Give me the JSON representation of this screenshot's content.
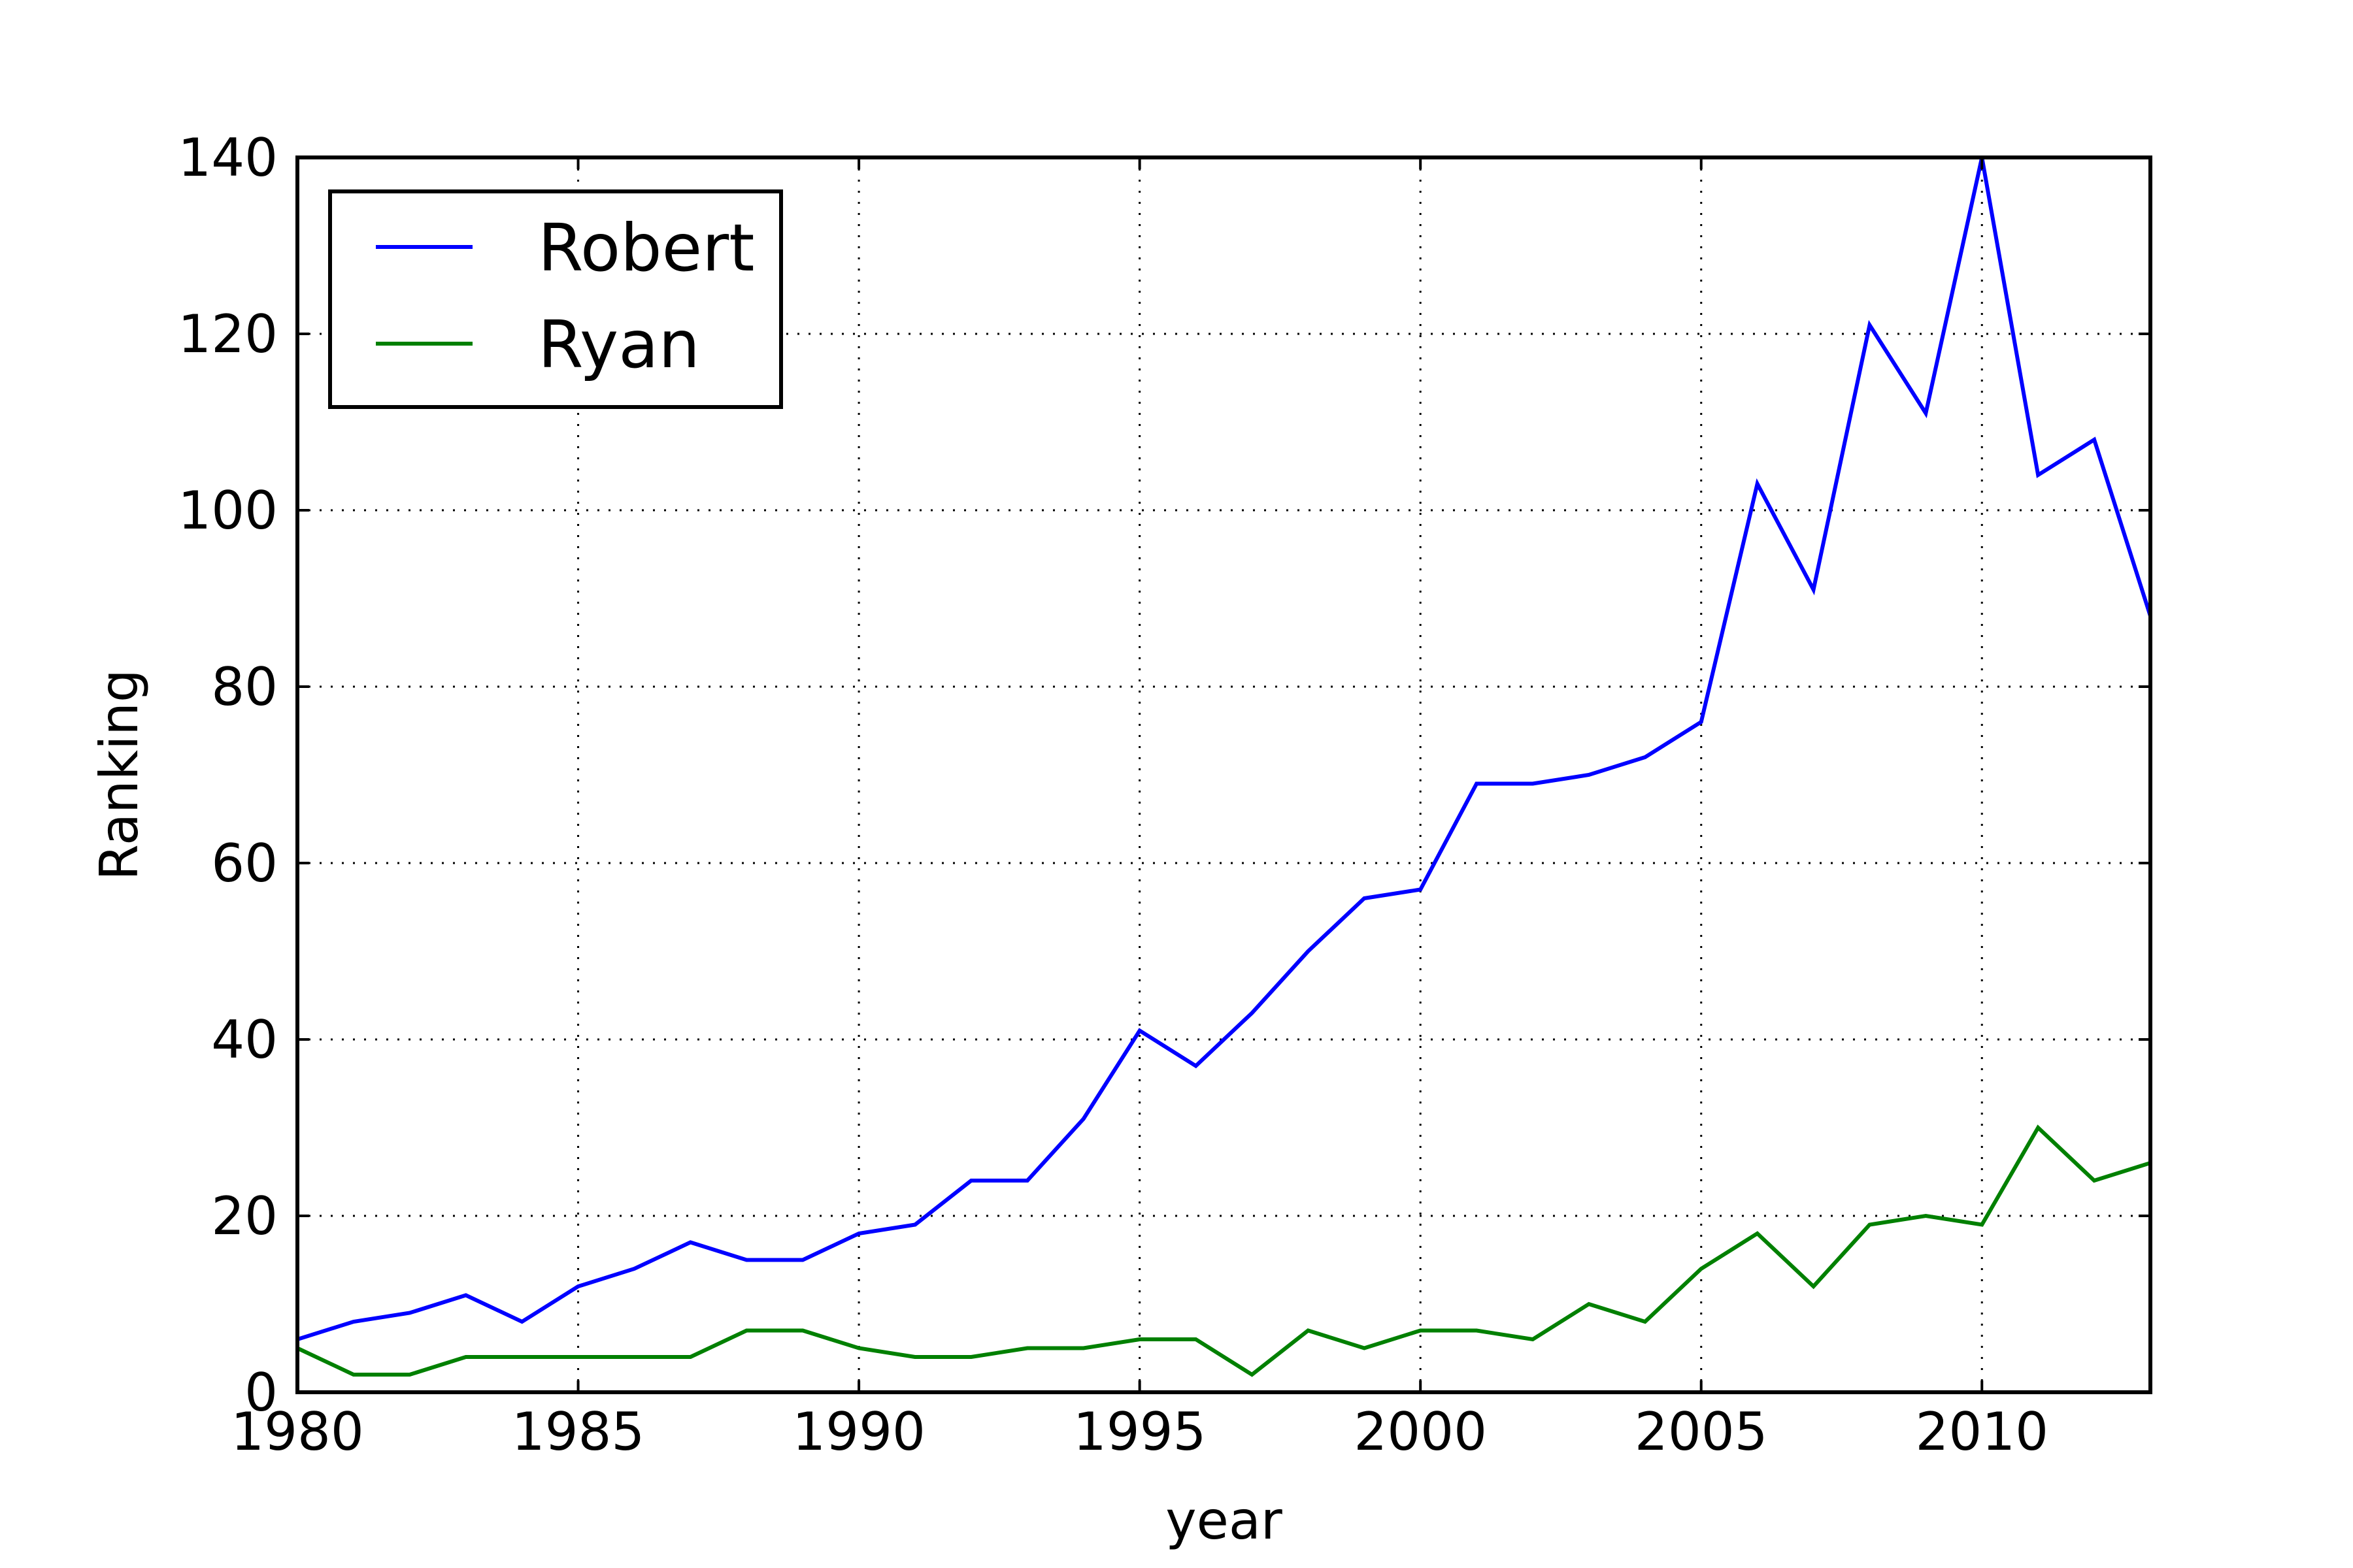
{
  "chart_data": {
    "type": "line",
    "title": "",
    "xlabel": "year",
    "ylabel": "Ranking",
    "xlim": [
      1980,
      2013
    ],
    "ylim": [
      0,
      140
    ],
    "xticks": [
      1980,
      1985,
      1990,
      1995,
      2000,
      2005,
      2010
    ],
    "yticks": [
      0,
      20,
      40,
      60,
      80,
      100,
      120,
      140
    ],
    "grid": true,
    "legend": "top-left",
    "x": [
      1980,
      1981,
      1982,
      1983,
      1984,
      1985,
      1986,
      1987,
      1988,
      1989,
      1990,
      1991,
      1992,
      1993,
      1994,
      1995,
      1996,
      1997,
      1998,
      1999,
      2000,
      2001,
      2002,
      2003,
      2004,
      2005,
      2006,
      2007,
      2008,
      2009,
      2010,
      2011,
      2012,
      2013
    ],
    "series": [
      {
        "name": "Robert",
        "color": "#0000ff",
        "values": [
          6,
          8,
          9,
          11,
          8,
          12,
          14,
          17,
          15,
          15,
          18,
          19,
          24,
          24,
          31,
          41,
          37,
          43,
          50,
          56,
          57,
          69,
          69,
          70,
          72,
          76,
          103,
          91,
          121,
          111,
          140,
          104,
          108,
          88
        ]
      },
      {
        "name": "Ryan",
        "color": "#008000",
        "values": [
          5,
          2,
          2,
          4,
          4,
          4,
          4,
          4,
          7,
          7,
          5,
          4,
          4,
          5,
          5,
          6,
          6,
          2,
          7,
          5,
          7,
          7,
          6,
          10,
          8,
          14,
          18,
          12,
          19,
          20,
          19,
          30,
          24,
          26
        ]
      }
    ]
  }
}
